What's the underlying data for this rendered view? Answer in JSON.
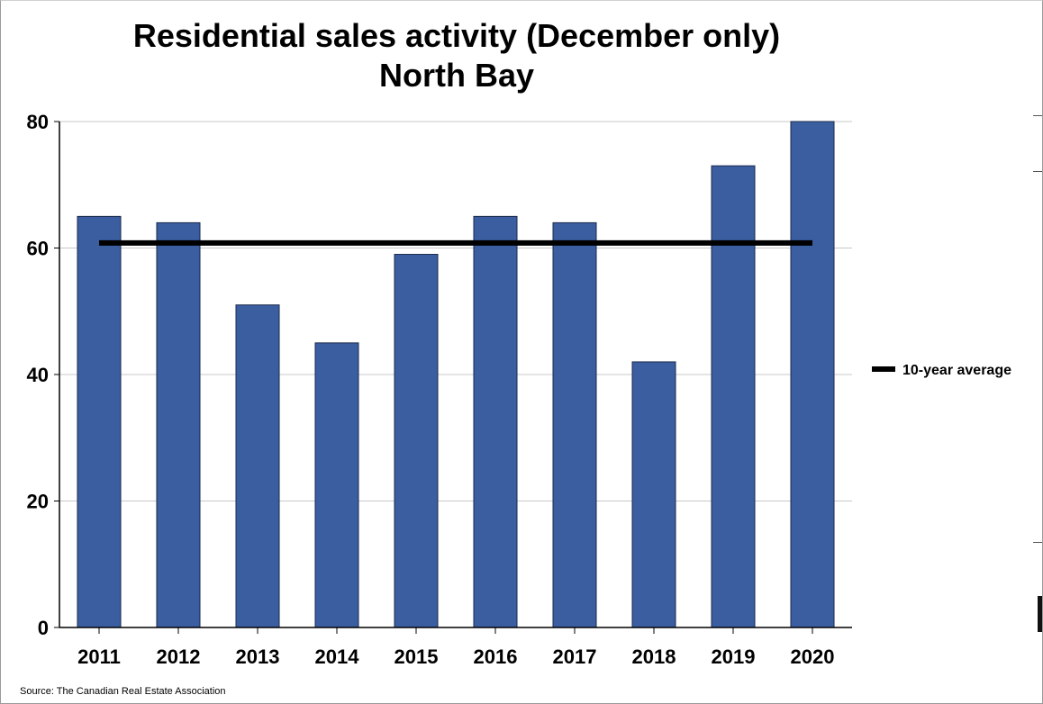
{
  "chart_data": {
    "type": "bar",
    "title": "Residential sales activity (December only)",
    "subtitle": "North Bay",
    "categories": [
      "2011",
      "2012",
      "2013",
      "2014",
      "2015",
      "2016",
      "2017",
      "2018",
      "2019",
      "2020"
    ],
    "series": [
      {
        "values": [
          65,
          64,
          51,
          45,
          59,
          65,
          64,
          42,
          73,
          80
        ]
      }
    ],
    "reference_line": {
      "name": "10-year average",
      "value": 60.8
    },
    "ylim": [
      0,
      80
    ],
    "yticks": [
      0,
      20,
      40,
      60,
      80
    ],
    "xlabel": "",
    "ylabel": "",
    "grid": true,
    "legend_position": "right",
    "colors": {
      "bar": "#3b5ea1",
      "bar_edge": "#1a2a4a",
      "average_line": "#000000",
      "grid": "#c8c8c8"
    }
  },
  "source": "Source: The Canadian Real Estate Association"
}
